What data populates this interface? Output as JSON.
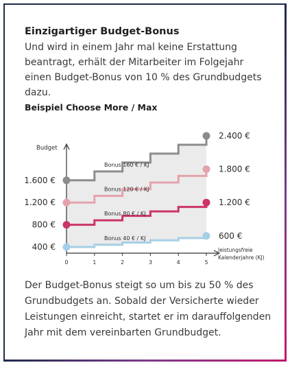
{
  "heading": "Einzigartiger Budget-Bonus",
  "intro": "Und wird in einem Jahr mal keine Erstattung beantragt, erhält der Mitarbeiter im Folgejahr einen Budget-Bonus von 10 % des Grundbudgets dazu.",
  "outro": "Der Budget-Bonus steigt so um bis zu 50 % des Grundbudgets an. Sobald der Versicherte wieder Leistungen einreicht, startet er im darauffolgenden Jahr mit dem vereinbarten Grundbudget.",
  "chart_data": {
    "type": "line",
    "subtitle": "Beispiel Choose More / Max",
    "ylabel": "Budget",
    "xlabel": "leistungsfreie Kalenderjahre (KJ)",
    "x": [
      0,
      1,
      2,
      3,
      4,
      5
    ],
    "grid": false,
    "step": true,
    "yticks": [
      "1.600 €",
      "1.200 €",
      "800 €",
      "400 €"
    ],
    "series": [
      {
        "base": 1600,
        "bonus_label": "Bonus 160 € / KJ",
        "end_label": "2.400 €",
        "values": [
          1600,
          1760,
          1920,
          2080,
          2240,
          2400
        ],
        "color": "#8c8c8c"
      },
      {
        "base": 1200,
        "bonus_label": "Bonus 120 € / KJ",
        "end_label": "1.800 €",
        "values": [
          1200,
          1320,
          1440,
          1560,
          1680,
          1800
        ],
        "color": "#e4a3ac"
      },
      {
        "base": 800,
        "bonus_label": "Bonus 80 € / KJ",
        "end_label": "1.200 €",
        "values": [
          800,
          880,
          960,
          1040,
          1120,
          1200
        ],
        "color": "#cc3366"
      },
      {
        "base": 400,
        "bonus_label": "Bonus 40 € / KJ",
        "end_label": "600 €",
        "values": [
          400,
          440,
          480,
          520,
          560,
          600
        ],
        "color": "#a6cfe6"
      }
    ],
    "shade_color": "#ebebeb"
  }
}
